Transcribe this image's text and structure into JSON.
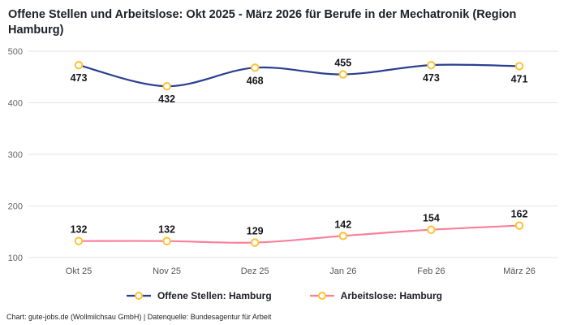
{
  "title": "Offene Stellen und Arbeitslose: Okt 2025 - März 2026 für Berufe in der Mechatronik (Region Hamburg)",
  "chart_data": {
    "type": "line",
    "categories": [
      "Okt 25",
      "Nov 25",
      "Dez 25",
      "Jan 26",
      "Feb 26",
      "März 26"
    ],
    "series": [
      {
        "name": "Offene Stellen: Hamburg",
        "color": "#2a3f8f",
        "values": [
          473,
          432,
          468,
          455,
          473,
          471
        ],
        "label_positions": [
          "below",
          "below",
          "below",
          "above",
          "below",
          "below"
        ]
      },
      {
        "name": "Arbeitslose: Hamburg",
        "color": "#f8809a",
        "values": [
          132,
          132,
          129,
          142,
          154,
          162
        ],
        "label_positions": [
          "above",
          "above",
          "above",
          "above",
          "above",
          "above"
        ]
      }
    ],
    "marker": {
      "fill": "#ffffff",
      "stroke": "#fdc132"
    },
    "ylim": [
      100,
      500
    ],
    "yticks": [
      100,
      200,
      300,
      400,
      500
    ],
    "grid": true,
    "legend_position": "bottom",
    "xlabel": "",
    "ylabel": ""
  },
  "footer": "Chart: gute-jobs.de (Wollmilchsau GmbH) | Datenquelle: Bundesagentur für Arbeit"
}
